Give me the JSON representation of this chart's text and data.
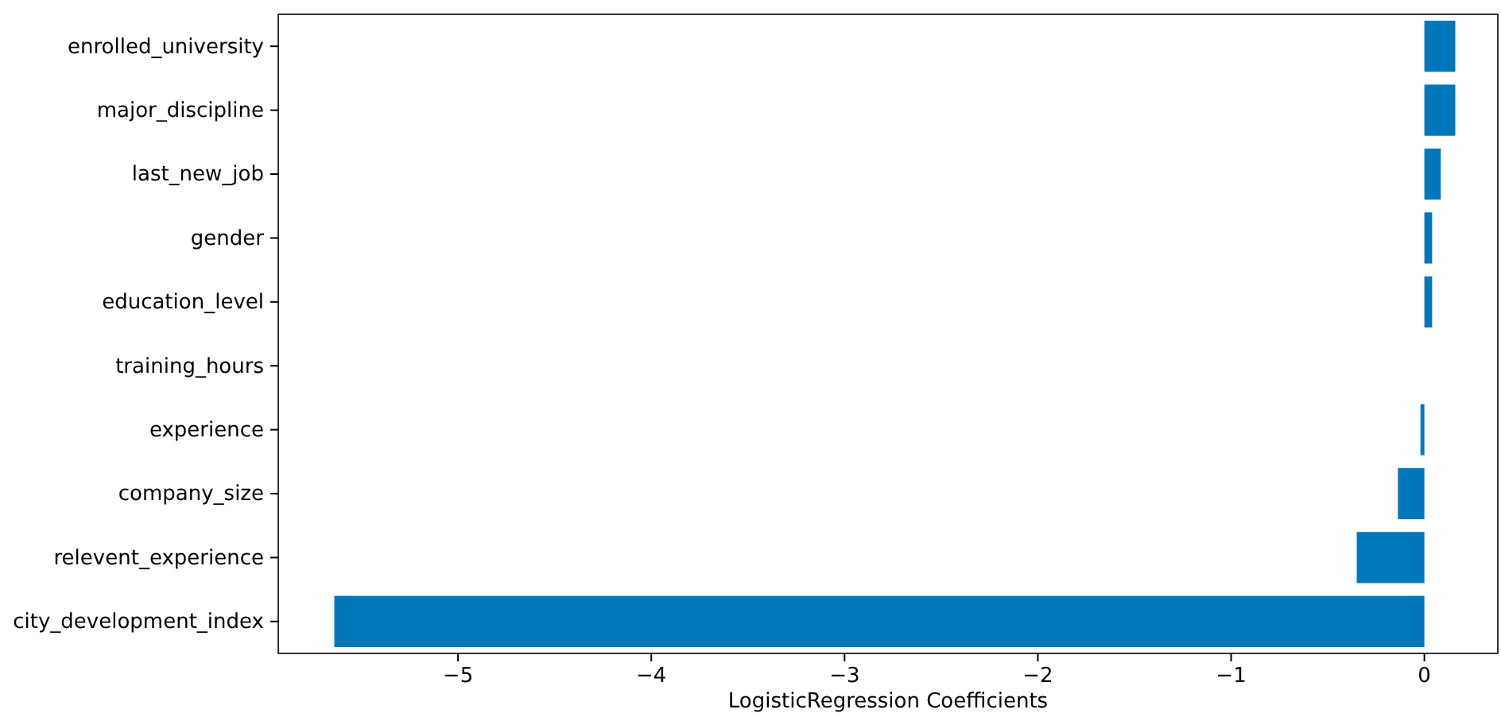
{
  "chart_data": {
    "type": "bar",
    "orientation": "horizontal",
    "xlabel": "LogisticRegression Coefficients",
    "categories": [
      "enrolled_university",
      "major_discipline",
      "last_new_job",
      "gender",
      "education_level",
      "training_hours",
      "experience",
      "company_size",
      "relevent_experience",
      "city_development_index"
    ],
    "values": [
      0.16,
      0.16,
      0.085,
      0.04,
      0.04,
      0,
      -0.02,
      -0.137,
      -0.35,
      -5.64
    ],
    "color": "#0077bb",
    "xlim": [
      -5.93,
      0.38
    ],
    "xticks": [
      {
        "value": -5,
        "label": "−5"
      },
      {
        "value": -4,
        "label": "−4"
      },
      {
        "value": -3,
        "label": "−3"
      },
      {
        "value": -2,
        "label": "−2"
      },
      {
        "value": -1,
        "label": "−1"
      },
      0
    ]
  }
}
